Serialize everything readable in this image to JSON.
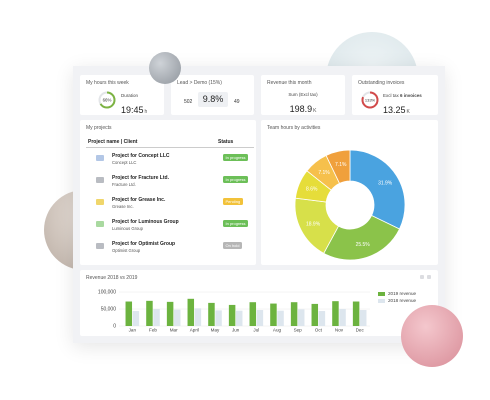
{
  "colors": {
    "green": "#7cb342",
    "blue": "#4aa3e0",
    "yellow_green": "#cddc39",
    "yellow": "#e6d83a",
    "orange": "#f0a03c",
    "light_orange": "#f6c04c",
    "gray_bar": "#dde6ee",
    "in_progress": "#6cbf58",
    "pending": "#f2c23a",
    "on_hold": "#b6b6b6"
  },
  "hours_week": {
    "title": "My hours this week",
    "ring_value": "66%",
    "ring_fraction": 0.66,
    "label": "Duration",
    "value": "19:45",
    "unit": "h"
  },
  "lead_demo": {
    "title": "Lead > Demo (15%)",
    "left_value": "502",
    "center_value": "9.8%",
    "right_value": "49"
  },
  "revenue_month": {
    "title": "Revenue this month",
    "label": "Sum (Excl tax)",
    "value": "198.9",
    "unit": "K"
  },
  "outstanding": {
    "title": "Outstanding invoices",
    "ring_value": "133%",
    "label_prefix": "Excl tax",
    "label_count": "6 invoices",
    "value": "13.25",
    "unit": "K"
  },
  "projects": {
    "title": "My projects",
    "col_name": "Project name | Client",
    "col_status": "Status",
    "rows": [
      {
        "name": "Project for Concept LLC",
        "client": "Concept LLC",
        "status": "In progress",
        "folder": "#b3c7e6",
        "badge": "#6cbf58"
      },
      {
        "name": "Project for Fracture Ltd.",
        "client": "Fracture Ltd.",
        "status": "In progress",
        "folder": "#b9bcc2",
        "badge": "#6cbf58"
      },
      {
        "name": "Project for Grease Inc.",
        "client": "Grease Inc.",
        "status": "Pending",
        "folder": "#f0d66b",
        "badge": "#f2c23a"
      },
      {
        "name": "Project for Luminous Group",
        "client": "Luminous Group",
        "status": "In progress",
        "folder": "#a9d9a0",
        "badge": "#6cbf58"
      },
      {
        "name": "Project for Optimist Group",
        "client": "Optimist Group",
        "status": "On hold",
        "folder": "#b9bcc2",
        "badge": "#b6b6b6"
      }
    ]
  },
  "team_hours": {
    "title": "Team hours by activities"
  },
  "revenue_year": {
    "title": "Revenue 2018 vs 2019",
    "legend_2019": "2019 revenue",
    "legend_2018": "2018 revenue"
  },
  "chart_data": [
    {
      "type": "pie",
      "title": "Team hours by activities",
      "slices": [
        {
          "label": "31.9%",
          "value": 31.9,
          "color": "#4aa3e0"
        },
        {
          "label": "25.5%",
          "value": 25.5,
          "color": "#8bc34a"
        },
        {
          "label": "18.9%",
          "value": 18.9,
          "color": "#d7e04a"
        },
        {
          "label": "8.6%",
          "value": 8.6,
          "color": "#e6dd3a"
        },
        {
          "label": "7.1%",
          "value": 7.1,
          "color": "#f6c04c"
        },
        {
          "label": "7.1%",
          "value": 7.1,
          "color": "#f0a03c"
        }
      ]
    },
    {
      "type": "bar",
      "title": "Revenue 2018 vs 2019",
      "categories": [
        "Jan",
        "Feb",
        "Mar",
        "April",
        "May",
        "Jun",
        "Jul",
        "Aug",
        "Sep",
        "Oct",
        "Nov",
        "Dec"
      ],
      "y_ticks": [
        "100,000",
        "50,000",
        "0"
      ],
      "ylim": [
        0,
        100000
      ],
      "series": [
        {
          "name": "2019 revenue",
          "color": "#6cb33f",
          "values": [
            72000,
            74000,
            71000,
            80000,
            68000,
            62000,
            70000,
            66000,
            70000,
            65000,
            73000,
            72000
          ]
        },
        {
          "name": "2018 revenue",
          "color": "#dde6ee",
          "values": [
            44000,
            50000,
            48000,
            52000,
            46000,
            45000,
            47000,
            45000,
            49000,
            44000,
            50000,
            47000
          ]
        }
      ]
    }
  ]
}
